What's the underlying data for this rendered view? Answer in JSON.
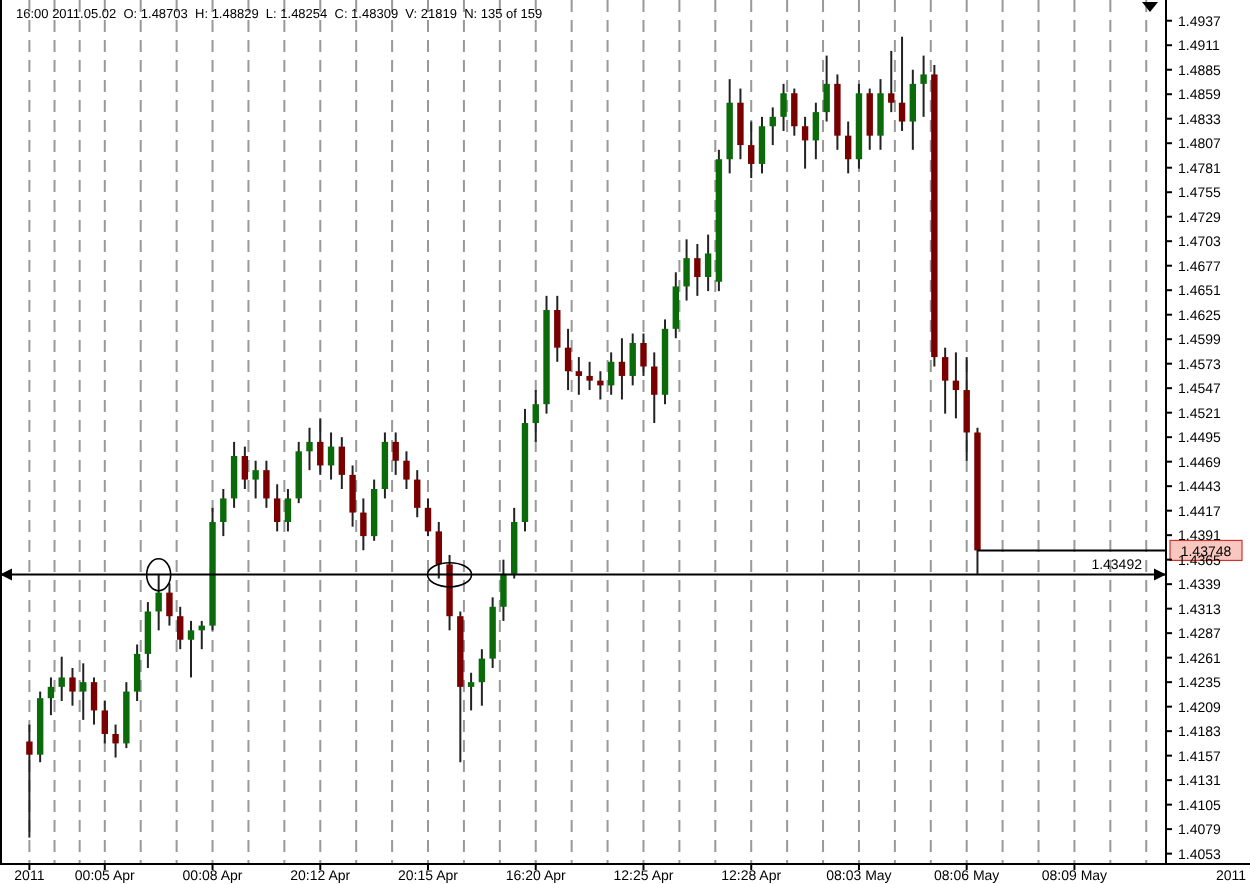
{
  "chart_data": {
    "type": "candlestick",
    "categories": [
      "2011",
      null,
      null,
      null,
      null,
      null,
      null,
      "00:05 Apr",
      null,
      null,
      null,
      null,
      null,
      null,
      null,
      null,
      null,
      "00:08 Apr",
      null,
      null,
      null,
      null,
      null,
      null,
      null,
      null,
      null,
      "20:12 Apr",
      null,
      null,
      null,
      null,
      null,
      null,
      null,
      null,
      null,
      "20:15 Apr",
      null,
      null,
      null,
      null,
      null,
      null,
      null,
      null,
      null,
      "16:20 Apr",
      null,
      null,
      null,
      null,
      null,
      null,
      null,
      null,
      null,
      "12:25 Apr",
      null,
      null,
      null,
      null,
      null,
      null,
      null,
      null,
      null,
      "12:28 Apr",
      null,
      null,
      null,
      null,
      null,
      null,
      null,
      null,
      null,
      "08:03 May",
      null,
      null,
      null,
      null,
      null,
      null,
      null,
      null,
      null,
      "08:06 May",
      null,
      null,
      null,
      null,
      null,
      null,
      null,
      null,
      null,
      "08:09 May",
      null,
      null,
      null,
      null,
      null,
      null,
      null,
      null
    ],
    "ohlc": [
      [
        1.4172,
        1.419,
        1.407,
        1.4158
      ],
      [
        1.4158,
        1.4225,
        1.415,
        1.4218
      ],
      [
        1.4218,
        1.424,
        1.42,
        1.423
      ],
      [
        1.423,
        1.4262,
        1.4215,
        1.424
      ],
      [
        1.424,
        1.425,
        1.421,
        1.4225
      ],
      [
        1.4225,
        1.4255,
        1.4195,
        1.4235
      ],
      [
        1.4235,
        1.424,
        1.419,
        1.4205
      ],
      [
        1.4205,
        1.4215,
        1.417,
        1.418
      ],
      [
        1.418,
        1.419,
        1.4155,
        1.417
      ],
      [
        1.417,
        1.4235,
        1.4165,
        1.4225
      ],
      [
        1.4225,
        1.4275,
        1.4215,
        1.4265
      ],
      [
        1.4265,
        1.432,
        1.425,
        1.431
      ],
      [
        1.431,
        1.435,
        1.429,
        1.433
      ],
      [
        1.433,
        1.434,
        1.4295,
        1.4305
      ],
      [
        1.4305,
        1.4315,
        1.427,
        1.428
      ],
      [
        1.428,
        1.43,
        1.424,
        1.429
      ],
      [
        1.429,
        1.43,
        1.427,
        1.4295
      ],
      [
        1.4295,
        1.442,
        1.429,
        1.4405
      ],
      [
        1.4405,
        1.444,
        1.439,
        1.443
      ],
      [
        1.443,
        1.449,
        1.442,
        1.4475
      ],
      [
        1.4475,
        1.4485,
        1.444,
        1.445
      ],
      [
        1.445,
        1.447,
        1.443,
        1.446
      ],
      [
        1.446,
        1.447,
        1.442,
        1.443
      ],
      [
        1.443,
        1.4445,
        1.4395,
        1.4405
      ],
      [
        1.4405,
        1.444,
        1.4395,
        1.443
      ],
      [
        1.443,
        1.449,
        1.4425,
        1.448
      ],
      [
        1.448,
        1.4505,
        1.446,
        1.449
      ],
      [
        1.449,
        1.4515,
        1.4455,
        1.4465
      ],
      [
        1.4465,
        1.45,
        1.445,
        1.4485
      ],
      [
        1.4485,
        1.4495,
        1.444,
        1.4455
      ],
      [
        1.4455,
        1.4465,
        1.44,
        1.4415
      ],
      [
        1.4415,
        1.443,
        1.4375,
        1.439
      ],
      [
        1.439,
        1.445,
        1.4385,
        1.444
      ],
      [
        1.444,
        1.45,
        1.443,
        1.449
      ],
      [
        1.449,
        1.45,
        1.4455,
        1.447
      ],
      [
        1.447,
        1.448,
        1.444,
        1.445
      ],
      [
        1.445,
        1.446,
        1.441,
        1.442
      ],
      [
        1.442,
        1.443,
        1.439,
        1.4395
      ],
      [
        1.4395,
        1.4405,
        1.4345,
        1.436
      ],
      [
        1.436,
        1.437,
        1.429,
        1.4305
      ],
      [
        1.4305,
        1.431,
        1.415,
        1.423
      ],
      [
        1.423,
        1.4245,
        1.4205,
        1.4235
      ],
      [
        1.4235,
        1.427,
        1.421,
        1.426
      ],
      [
        1.426,
        1.4325,
        1.425,
        1.4315
      ],
      [
        1.4315,
        1.4365,
        1.43,
        1.435
      ],
      [
        1.435,
        1.442,
        1.4345,
        1.4405
      ],
      [
        1.4405,
        1.4525,
        1.4395,
        1.451
      ],
      [
        1.451,
        1.4545,
        1.449,
        1.453
      ],
      [
        1.453,
        1.4645,
        1.452,
        1.463
      ],
      [
        1.463,
        1.4645,
        1.4575,
        1.459
      ],
      [
        1.459,
        1.461,
        1.4545,
        1.4565
      ],
      [
        1.4565,
        1.458,
        1.454,
        1.456
      ],
      [
        1.456,
        1.4575,
        1.4545,
        1.4555
      ],
      [
        1.4555,
        1.4565,
        1.4535,
        1.455
      ],
      [
        1.455,
        1.4585,
        1.454,
        1.4575
      ],
      [
        1.4575,
        1.46,
        1.4535,
        1.456
      ],
      [
        1.456,
        1.4605,
        1.455,
        1.4595
      ],
      [
        1.4595,
        1.4605,
        1.456,
        1.457
      ],
      [
        1.457,
        1.4585,
        1.451,
        1.454
      ],
      [
        1.454,
        1.462,
        1.453,
        1.461
      ],
      [
        1.461,
        1.467,
        1.46,
        1.4655
      ],
      [
        1.4655,
        1.4705,
        1.464,
        1.4685
      ],
      [
        1.4685,
        1.47,
        1.4645,
        1.4665
      ],
      [
        1.4665,
        1.471,
        1.465,
        1.469
      ],
      [
        1.466,
        1.48,
        1.465,
        1.479
      ],
      [
        1.479,
        1.4875,
        1.4775,
        1.485
      ],
      [
        1.485,
        1.4865,
        1.479,
        1.4805
      ],
      [
        1.4805,
        1.483,
        1.477,
        1.4785
      ],
      [
        1.4785,
        1.4835,
        1.4775,
        1.4825
      ],
      [
        1.4825,
        1.4845,
        1.4805,
        1.4835
      ],
      [
        1.4835,
        1.487,
        1.482,
        1.486
      ],
      [
        1.486,
        1.4865,
        1.4815,
        1.4825
      ],
      [
        1.4825,
        1.4835,
        1.478,
        1.481
      ],
      [
        1.481,
        1.485,
        1.479,
        1.484
      ],
      [
        1.484,
        1.49,
        1.483,
        1.487
      ],
      [
        1.487,
        1.488,
        1.48,
        1.4815
      ],
      [
        1.4815,
        1.483,
        1.4775,
        1.479
      ],
      [
        1.479,
        1.487,
        1.478,
        1.486
      ],
      [
        1.486,
        1.4865,
        1.48,
        1.4815
      ],
      [
        1.4815,
        1.4875,
        1.48,
        1.486
      ],
      [
        1.486,
        1.4905,
        1.484,
        1.485
      ],
      [
        1.485,
        1.492,
        1.482,
        1.483
      ],
      [
        1.483,
        1.4885,
        1.48,
        1.487
      ],
      [
        1.487,
        1.49,
        1.4835,
        1.488
      ],
      [
        1.488,
        1.489,
        1.457,
        1.458
      ],
      [
        1.458,
        1.459,
        1.452,
        1.4555
      ],
      [
        1.4555,
        1.4585,
        1.4515,
        1.4545
      ],
      [
        1.4545,
        1.458,
        1.447,
        1.45
      ],
      [
        1.45,
        1.4505,
        1.435,
        1.43748
      ],
      null,
      null,
      null,
      null,
      null,
      null,
      null,
      null,
      null,
      null,
      null,
      null,
      null,
      null,
      null,
      null,
      null
    ],
    "colors": [
      "#7a0000",
      "#0b6b0b",
      "#0b6b0b",
      "#0b6b0b",
      "#7a0000",
      "#0b6b0b",
      "#7a0000",
      "#7a0000",
      "#7a0000",
      "#0b6b0b",
      "#0b6b0b",
      "#0b6b0b",
      "#0b6b0b",
      "#7a0000",
      "#7a0000",
      "#0b6b0b",
      "#0b6b0b",
      "#0b6b0b",
      "#0b6b0b",
      "#0b6b0b",
      "#7a0000",
      "#0b6b0b",
      "#7a0000",
      "#7a0000",
      "#0b6b0b",
      "#0b6b0b",
      "#0b6b0b",
      "#7a0000",
      "#0b6b0b",
      "#7a0000",
      "#7a0000",
      "#7a0000",
      "#0b6b0b",
      "#0b6b0b",
      "#7a0000",
      "#7a0000",
      "#7a0000",
      "#7a0000",
      "#7a0000",
      "#7a0000",
      "#7a0000",
      "#0b6b0b",
      "#0b6b0b",
      "#0b6b0b",
      "#0b6b0b",
      "#0b6b0b",
      "#0b6b0b",
      "#0b6b0b",
      "#0b6b0b",
      "#7a0000",
      "#7a0000",
      "#7a0000",
      "#7a0000",
      "#7a0000",
      "#0b6b0b",
      "#7a0000",
      "#0b6b0b",
      "#7a0000",
      "#7a0000",
      "#0b6b0b",
      "#0b6b0b",
      "#0b6b0b",
      "#7a0000",
      "#0b6b0b",
      "#0b6b0b",
      "#0b6b0b",
      "#7a0000",
      "#7a0000",
      "#0b6b0b",
      "#0b6b0b",
      "#0b6b0b",
      "#7a0000",
      "#7a0000",
      "#0b6b0b",
      "#0b6b0b",
      "#7a0000",
      "#7a0000",
      "#0b6b0b",
      "#7a0000",
      "#0b6b0b",
      "#7a0000",
      "#7a0000",
      "#0b6b0b",
      "#0b6b0b",
      "#7a0000",
      "#7a0000",
      "#7a0000",
      "#7a0000",
      "#7a0000",
      null,
      null,
      null,
      null,
      null,
      null,
      null,
      null,
      null,
      null,
      null,
      null,
      null,
      null,
      null,
      null,
      null
    ],
    "ylim": [
      1.4042,
      1.4959
    ],
    "yticks": [
      1.4937,
      1.4911,
      1.4885,
      1.4859,
      1.4833,
      1.4807,
      1.4781,
      1.4755,
      1.4729,
      1.4703,
      1.4677,
      1.4651,
      1.4625,
      1.4599,
      1.4573,
      1.4547,
      1.4521,
      1.4495,
      1.4469,
      1.4443,
      1.4417,
      1.4391,
      1.4365,
      1.4339,
      1.4313,
      1.4287,
      1.4261,
      1.4235,
      1.4209,
      1.4183,
      1.4157,
      1.4131,
      1.4105,
      1.4079,
      1.4053
    ],
    "grid": "x",
    "ref_lines": [
      {
        "axis": "y",
        "value": 1.43492,
        "label": "1.43492"
      },
      {
        "axis": "y",
        "value": 1.43748,
        "label": "1.43748"
      }
    ],
    "annotations": [
      "16:00 2011.05.02  O: 1.48703  H: 1.48829  L: 1.48254  C: 1.48309  V: 21819  N: 135 of 159",
      "2011"
    ]
  }
}
